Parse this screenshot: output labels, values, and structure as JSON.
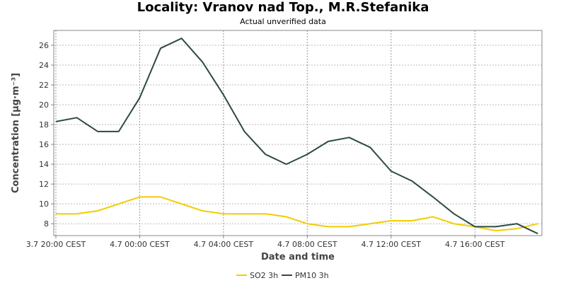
{
  "header": {
    "title": "Locality: Vranov nad Top., M.R.Stefanika",
    "subtitle": "Actual unverified data"
  },
  "chart_data": {
    "type": "line",
    "title": "Locality: Vranov nad Top., M.R.Stefanika",
    "subtitle": "Actual unverified data",
    "xlabel": "Date and time",
    "ylabel": "Concentration [µg·m⁻³]",
    "x_tick_labels": [
      "3.7 20:00 CEST",
      "4.7 00:00 CEST",
      "4.7 04:00 CEST",
      "4.7 08:00 CEST",
      "4.7 12:00 CEST",
      "4.7 16:00 CEST"
    ],
    "x_tick_hours": [
      0,
      4,
      8,
      12,
      16,
      20
    ],
    "x_hours": [
      0,
      1,
      2,
      3,
      4,
      5,
      6,
      7,
      8,
      9,
      10,
      11,
      12,
      13,
      14,
      15,
      16,
      17,
      18,
      19,
      20,
      21,
      22,
      23
    ],
    "xlim": [
      -0.1,
      23.2
    ],
    "ylim": [
      6.8,
      27.5
    ],
    "y_ticks": [
      8,
      10,
      12,
      14,
      16,
      18,
      20,
      22,
      24,
      26
    ],
    "grid": true,
    "legend_position": "bottom",
    "series": [
      {
        "name": "SO2 3h",
        "color": "#f2cd00",
        "values": [
          9.0,
          9.0,
          9.3,
          10.0,
          10.7,
          10.7,
          10.0,
          9.3,
          9.0,
          9.0,
          9.0,
          8.7,
          8.0,
          7.7,
          7.7,
          8.0,
          8.3,
          8.3,
          8.7,
          8.0,
          7.7,
          7.3,
          7.5,
          8.0
        ]
      },
      {
        "name": "PM10 3h",
        "color": "#2e4a45",
        "values": [
          18.3,
          18.7,
          17.3,
          17.3,
          20.7,
          25.7,
          26.7,
          24.3,
          21.0,
          17.3,
          15.0,
          14.0,
          15.0,
          16.3,
          16.7,
          15.7,
          13.3,
          12.3,
          10.7,
          9.0,
          7.7,
          7.7,
          8.0,
          7.0
        ]
      }
    ]
  }
}
